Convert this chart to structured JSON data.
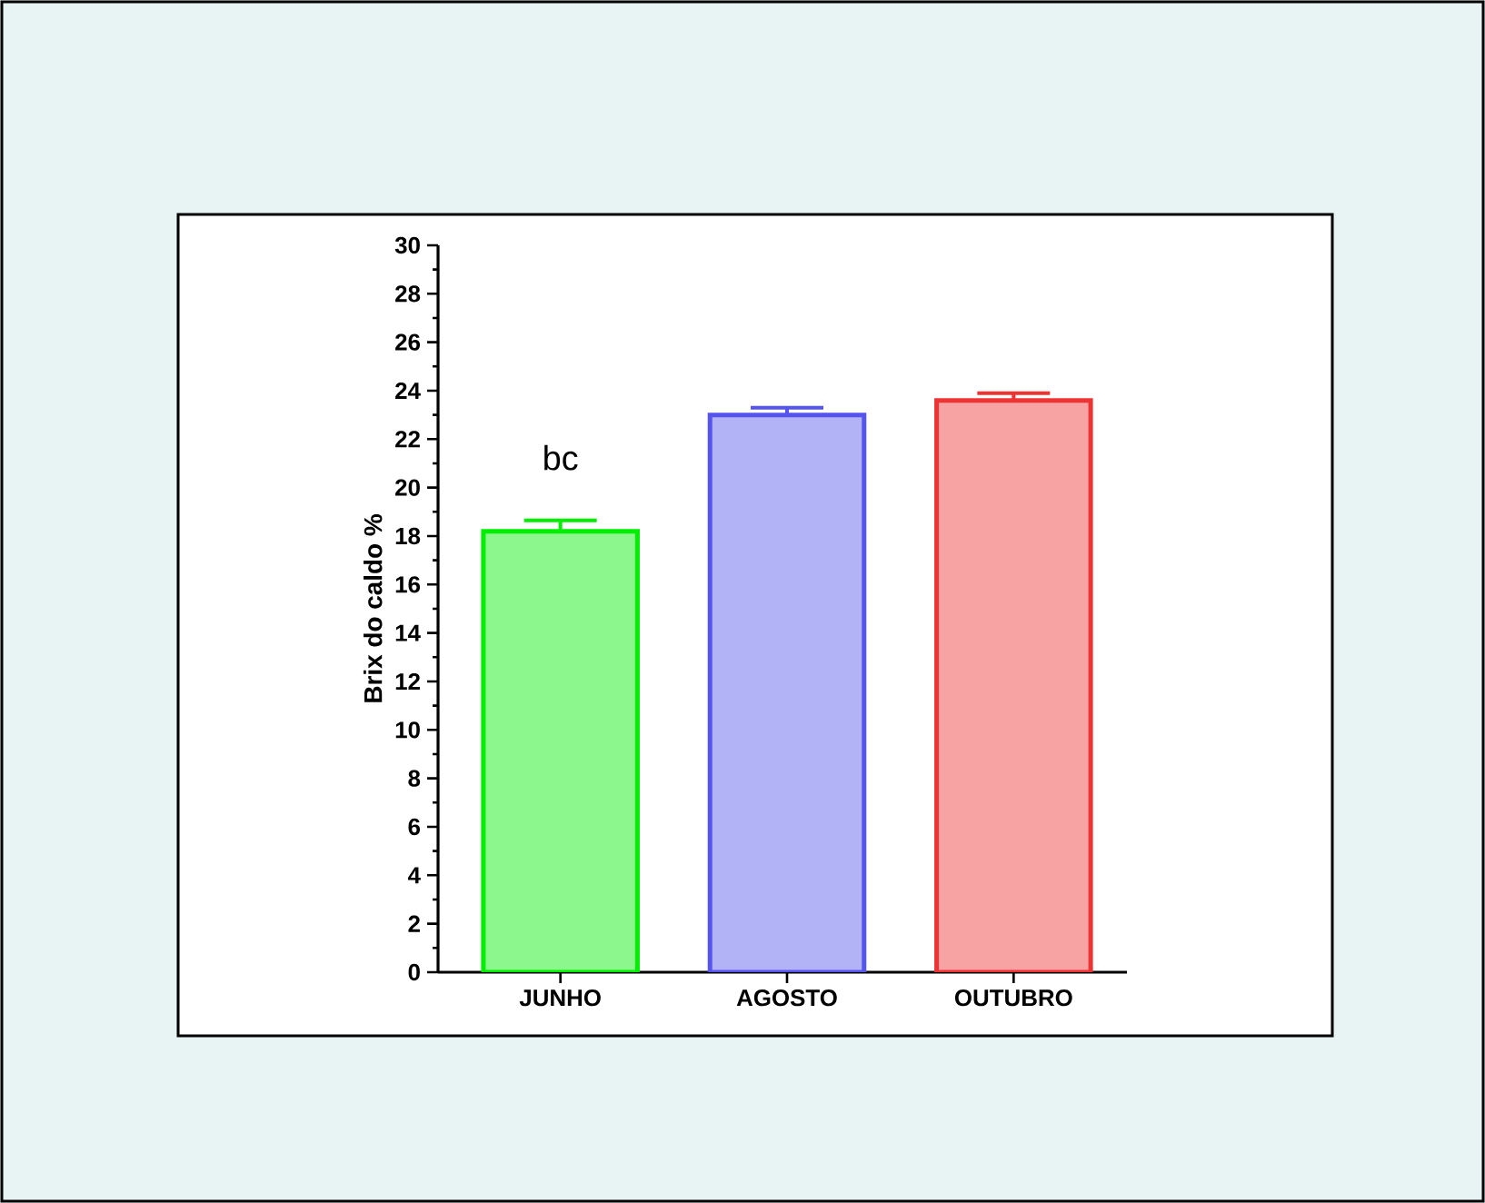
{
  "chart_data": {
    "type": "bar",
    "ylabel": "Brix do caldo %",
    "categories": [
      "JUNHO",
      "AGOSTO",
      "OUTUBRO"
    ],
    "values": [
      18.2,
      23.0,
      23.6
    ],
    "errors": [
      0.45,
      0.3,
      0.3
    ],
    "colors": [
      "#00ee00",
      "#5555ee",
      "#ee3333"
    ],
    "ylim": [
      0,
      30
    ],
    "yticks": [
      0,
      2,
      4,
      6,
      8,
      10,
      12,
      14,
      16,
      18,
      20,
      22,
      24,
      26,
      28,
      30
    ],
    "annotations": [
      "bc"
    ],
    "grid": false
  }
}
